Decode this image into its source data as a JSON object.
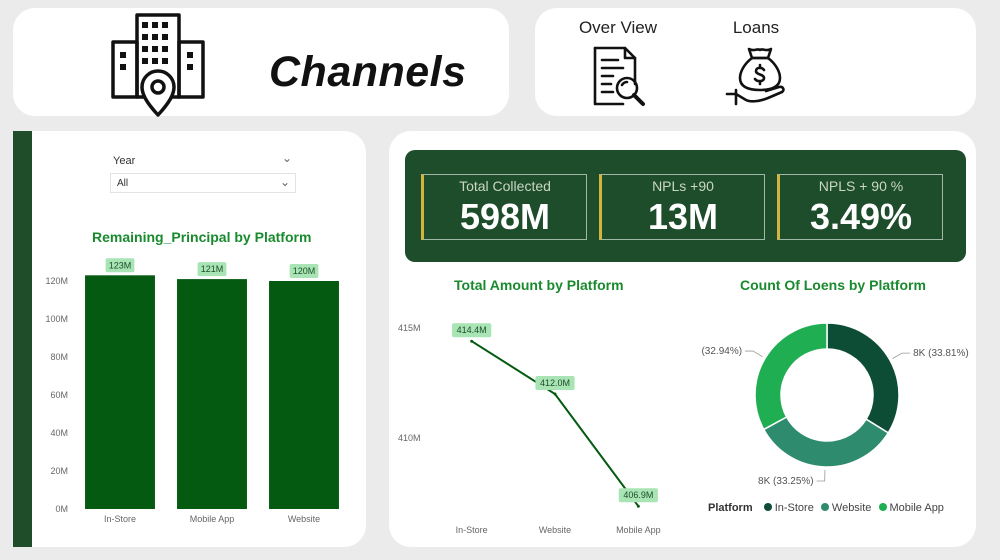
{
  "header": {
    "title": "Channels"
  },
  "nav": {
    "overview_label": "Over View",
    "loans_label": "Loans"
  },
  "slicer": {
    "title": "Year",
    "value": "All"
  },
  "kpis": [
    {
      "label": "Total Collected",
      "value": "598M"
    },
    {
      "label": "NPLs +90",
      "value": "13M"
    },
    {
      "label": "NPLS + 90 %",
      "value": "3.49%"
    }
  ],
  "colors": {
    "dark_green": "#1e4d2b",
    "bar_green": "#035a10",
    "title_green": "#1a8a2e",
    "badge_green": "#a8e4b4",
    "gold_accent": "#d4b441",
    "in_store": "#0e4d35",
    "website": "#2e8b6e",
    "mobile_app": "#1fae52"
  },
  "chart_data": [
    {
      "type": "bar",
      "title": "Remaining_Principal by Platform",
      "categories": [
        "In-Store",
        "Mobile App",
        "Website"
      ],
      "values": [
        123,
        121,
        120
      ],
      "data_labels": [
        "123M",
        "121M",
        "120M"
      ],
      "unit": "M",
      "ylim": [
        0,
        130
      ],
      "y_ticks": [
        "0M",
        "20M",
        "40M",
        "60M",
        "80M",
        "100M",
        "120M"
      ],
      "y_tick_values": [
        0,
        20,
        40,
        60,
        80,
        100,
        120
      ],
      "grid": false
    },
    {
      "type": "line",
      "title": "Total Amount by Platform",
      "categories": [
        "In-Store",
        "Website",
        "Mobile App"
      ],
      "values": [
        414.4,
        412.0,
        406.9
      ],
      "data_labels": [
        "414.4M",
        "412.0M",
        "406.9M"
      ],
      "unit": "M",
      "ylim": [
        406.5,
        415.5
      ],
      "y_ticks": [
        "410M",
        "415M"
      ],
      "y_tick_values": [
        410,
        415
      ],
      "grid": false
    },
    {
      "type": "pie",
      "title": "Count Of Loens by Platform",
      "legend_title": "Platform",
      "legend_position": "bottom",
      "categories": [
        "In-Store",
        "Website",
        "Mobile App"
      ],
      "values": [
        33.81,
        33.25,
        32.94
      ],
      "data_labels": [
        "8K (33.81%)",
        "8K (33.25%)",
        "8K (32.94%)"
      ]
    }
  ]
}
